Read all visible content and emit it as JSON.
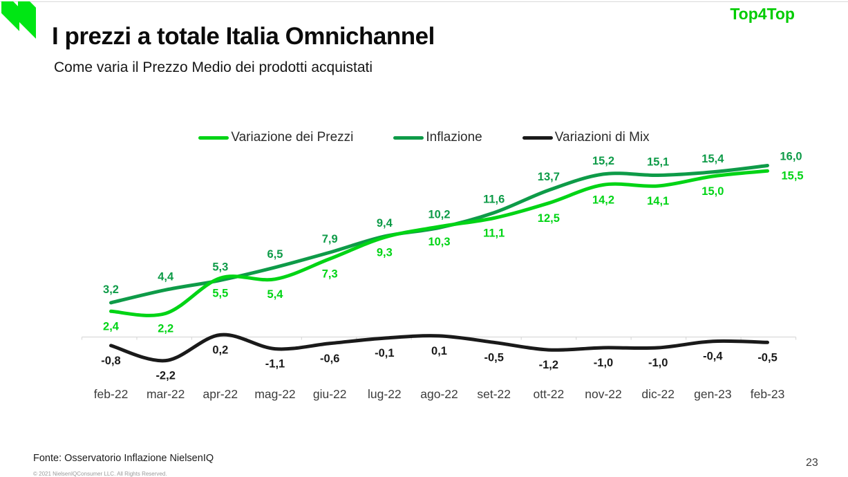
{
  "header": {
    "title": "I prezzi a totale Italia Omnichannel",
    "subtitle": "Come varia il Prezzo Medio dei prodotti acquistati",
    "brand": "Top4Top",
    "logo_icon": "nielseniq-logo",
    "logo_color": "#00e614"
  },
  "footer": {
    "source": "Fonte: Osservatorio Inflazione NielsenIQ",
    "copyright": "© 2021 NielsenIQConsumer LLC. All Rights Reserved.",
    "page_number": "23"
  },
  "chart_data": {
    "type": "line",
    "title": "",
    "xlabel": "",
    "ylabel": "",
    "grid": false,
    "legend_position": "top",
    "baseline_value": 0,
    "ylim": [
      -3.5,
      17
    ],
    "decimal_separator": ",",
    "categories": [
      "feb-22",
      "mar-22",
      "apr-22",
      "mag-22",
      "giu-22",
      "lug-22",
      "ago-22",
      "set-22",
      "ott-22",
      "nov-22",
      "dic-22",
      "gen-23",
      "feb-23"
    ],
    "series": [
      {
        "name": "Variazione dei Prezzi",
        "color": "#00d415",
        "label_position": "below",
        "values": [
          2.4,
          2.2,
          5.5,
          5.4,
          7.3,
          9.3,
          10.3,
          11.1,
          12.5,
          14.2,
          14.1,
          15.0,
          15.5
        ],
        "labels": [
          "2,4",
          "2,2",
          "5,5",
          "5,4",
          "7,3",
          "9,3",
          "10,3",
          "11,1",
          "12,5",
          "14,2",
          "14,1",
          "15,0",
          "15,5"
        ]
      },
      {
        "name": "Inflazione",
        "color": "#0e9b48",
        "label_position": "above",
        "values": [
          3.2,
          4.4,
          5.3,
          6.5,
          7.9,
          9.4,
          10.2,
          11.6,
          13.7,
          15.2,
          15.1,
          15.4,
          16.0
        ],
        "labels": [
          "3,2",
          "4,4",
          "5,3",
          "6,5",
          "7,9",
          "9,4",
          "10,2",
          "11,6",
          "13,7",
          "15,2",
          "15,1",
          "15,4",
          "16,0"
        ]
      },
      {
        "name": "Variazioni di Mix",
        "color": "#1a1a1a",
        "label_position": "below",
        "values": [
          -0.8,
          -2.2,
          0.2,
          -1.1,
          -0.6,
          -0.1,
          0.1,
          -0.5,
          -1.2,
          -1.0,
          -1.0,
          -0.4,
          -0.5
        ],
        "labels": [
          "-0,8",
          "-2,2",
          "0,2",
          "-1,1",
          "-0,6",
          "-0,1",
          "0,1",
          "-0,5",
          "-1,2",
          "-1,0",
          "-1,0",
          "-0,4",
          "-0,5"
        ]
      }
    ],
    "axis_color": "#d9d9d9",
    "x_tick_label_color": "#3c3c3c"
  }
}
